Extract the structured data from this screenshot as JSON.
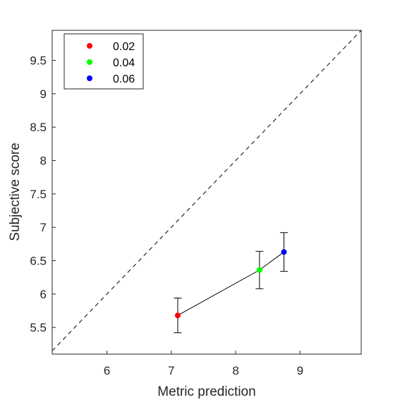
{
  "chart_data": {
    "type": "scatter",
    "title": "",
    "xlabel": "Metric prediction",
    "ylabel": "Subjective score",
    "xlim": [
      5.15,
      9.95
    ],
    "ylim": [
      5.1,
      9.95
    ],
    "xticks": [
      "6",
      "7",
      "8",
      "9"
    ],
    "yticks": [
      "5.5",
      "6",
      "6.5",
      "7",
      "7.5",
      "8",
      "8.5",
      "9",
      "9.5"
    ],
    "grid": false,
    "legend": "top-left",
    "reference_line": "y = x (dashed)",
    "connect_points": true,
    "series": [
      {
        "name": "0.02",
        "color": "#ff0000",
        "x": 7.1,
        "y": 5.68,
        "err_low": 5.42,
        "err_high": 5.94
      },
      {
        "name": "0.04",
        "color": "#00ff00",
        "x": 8.37,
        "y": 6.36,
        "err_low": 6.08,
        "err_high": 6.64
      },
      {
        "name": "0.06",
        "color": "#0000ff",
        "x": 8.75,
        "y": 6.63,
        "err_low": 6.34,
        "err_high": 6.92
      }
    ]
  }
}
